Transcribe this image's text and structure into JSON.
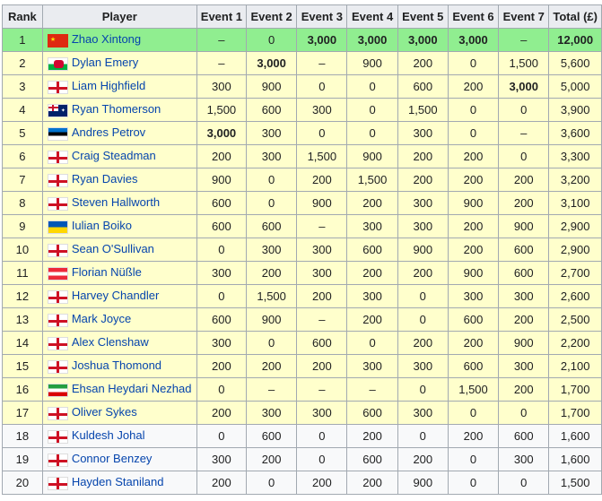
{
  "headers": [
    "Rank",
    "Player",
    "Event 1",
    "Event 2",
    "Event 3",
    "Event 4",
    "Event 5",
    "Event 6",
    "Event 7",
    "Total (£)"
  ],
  "colors": {
    "leader": "#90ee90",
    "qualified": "#ffffcc",
    "other": "#f8f9fa",
    "header": "#eaecf0",
    "link": "#0645ad"
  },
  "rows": [
    {
      "rank": "1",
      "flag": "china",
      "player": "Zhao Xintong",
      "cells": [
        "–",
        "0",
        "3,000",
        "3,000",
        "3,000",
        "3,000",
        "–",
        "12,000"
      ],
      "bold": [
        2,
        3,
        4,
        5,
        7
      ],
      "style": "hl"
    },
    {
      "rank": "2",
      "flag": "wales",
      "player": "Dylan Emery",
      "cells": [
        "–",
        "3,000",
        "–",
        "900",
        "200",
        "0",
        "1,500",
        "5,600"
      ],
      "bold": [
        1
      ],
      "style": "y"
    },
    {
      "rank": "3",
      "flag": "england",
      "player": "Liam Highfield",
      "cells": [
        "300",
        "900",
        "0",
        "0",
        "600",
        "200",
        "3,000",
        "5,000"
      ],
      "bold": [
        6
      ],
      "style": "y"
    },
    {
      "rank": "4",
      "flag": "australia",
      "player": "Ryan Thomerson",
      "cells": [
        "1,500",
        "600",
        "300",
        "0",
        "1,500",
        "0",
        "0",
        "3,900"
      ],
      "bold": [],
      "style": "y"
    },
    {
      "rank": "5",
      "flag": "estonia",
      "player": "Andres Petrov",
      "cells": [
        "3,000",
        "300",
        "0",
        "0",
        "300",
        "0",
        "–",
        "3,600"
      ],
      "bold": [
        0
      ],
      "style": "y"
    },
    {
      "rank": "6",
      "flag": "england",
      "player": "Craig Steadman",
      "cells": [
        "200",
        "300",
        "1,500",
        "900",
        "200",
        "200",
        "0",
        "3,300"
      ],
      "bold": [],
      "style": "y"
    },
    {
      "rank": "7",
      "flag": "england",
      "player": "Ryan Davies",
      "cells": [
        "900",
        "0",
        "200",
        "1,500",
        "200",
        "200",
        "200",
        "3,200"
      ],
      "bold": [],
      "style": "y"
    },
    {
      "rank": "8",
      "flag": "england",
      "player": "Steven Hallworth",
      "cells": [
        "600",
        "0",
        "900",
        "200",
        "300",
        "900",
        "200",
        "3,100"
      ],
      "bold": [],
      "style": "y"
    },
    {
      "rank": "9",
      "flag": "ukraine",
      "player": "Iulian Boiko",
      "cells": [
        "600",
        "600",
        "–",
        "300",
        "300",
        "200",
        "900",
        "2,900"
      ],
      "bold": [],
      "style": "y"
    },
    {
      "rank": "10",
      "flag": "england",
      "player": "Sean O'Sullivan",
      "cells": [
        "0",
        "300",
        "300",
        "600",
        "900",
        "200",
        "600",
        "2,900"
      ],
      "bold": [],
      "style": "y"
    },
    {
      "rank": "11",
      "flag": "austria",
      "player": "Florian Nüßle",
      "cells": [
        "300",
        "200",
        "300",
        "200",
        "200",
        "900",
        "600",
        "2,700"
      ],
      "bold": [],
      "style": "y"
    },
    {
      "rank": "12",
      "flag": "england",
      "player": "Harvey Chandler",
      "cells": [
        "0",
        "1,500",
        "200",
        "300",
        "0",
        "300",
        "300",
        "2,600"
      ],
      "bold": [],
      "style": "y"
    },
    {
      "rank": "13",
      "flag": "england",
      "player": "Mark Joyce",
      "cells": [
        "600",
        "900",
        "–",
        "200",
        "0",
        "600",
        "200",
        "2,500"
      ],
      "bold": [],
      "style": "y"
    },
    {
      "rank": "14",
      "flag": "england",
      "player": "Alex Clenshaw",
      "cells": [
        "300",
        "0",
        "600",
        "0",
        "200",
        "200",
        "900",
        "2,200"
      ],
      "bold": [],
      "style": "y"
    },
    {
      "rank": "15",
      "flag": "england",
      "player": "Joshua Thomond",
      "cells": [
        "200",
        "200",
        "200",
        "300",
        "300",
        "600",
        "300",
        "2,100"
      ],
      "bold": [],
      "style": "y"
    },
    {
      "rank": "16",
      "flag": "iran",
      "player": "Ehsan Heydari Nezhad",
      "cells": [
        "0",
        "–",
        "–",
        "–",
        "0",
        "1,500",
        "200",
        "1,700"
      ],
      "bold": [],
      "style": "y"
    },
    {
      "rank": "17",
      "flag": "england",
      "player": "Oliver Sykes",
      "cells": [
        "200",
        "300",
        "300",
        "600",
        "300",
        "0",
        "0",
        "1,700"
      ],
      "bold": [],
      "style": "y"
    },
    {
      "rank": "18",
      "flag": "england",
      "player": "Kuldesh Johal",
      "cells": [
        "0",
        "600",
        "0",
        "200",
        "0",
        "200",
        "600",
        "1,600"
      ],
      "bold": [],
      "style": "w"
    },
    {
      "rank": "19",
      "flag": "england",
      "player": "Connor Benzey",
      "cells": [
        "300",
        "200",
        "0",
        "600",
        "200",
        "0",
        "300",
        "1,600"
      ],
      "bold": [],
      "style": "w"
    },
    {
      "rank": "20",
      "flag": "england",
      "player": "Hayden Staniland",
      "cells": [
        "200",
        "0",
        "200",
        "200",
        "900",
        "0",
        "0",
        "1,500"
      ],
      "bold": [],
      "style": "w"
    }
  ]
}
